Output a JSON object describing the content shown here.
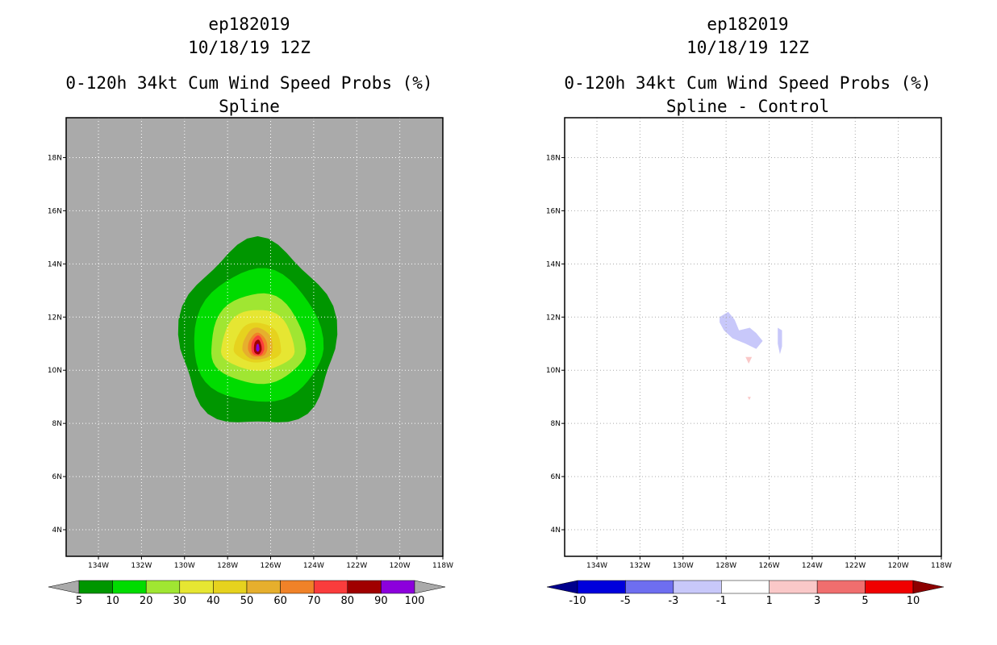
{
  "chart_data": [
    {
      "type": "filled_contour_map",
      "storm_id": "ep182019",
      "datetime": "10/18/19 12Z",
      "title": "0-120h 34kt Cum Wind Speed Probs (%)",
      "subtitle": "Spline",
      "lon_ticks": [
        "134W",
        "132W",
        "130W",
        "128W",
        "126W",
        "124W",
        "122W",
        "120W",
        "118W"
      ],
      "lat_ticks": [
        "18N",
        "16N",
        "14N",
        "12N",
        "10N",
        "8N",
        "6N",
        "4N"
      ],
      "lon_range": [
        -135.5,
        -118
      ],
      "lat_range": [
        3,
        19.5
      ],
      "background_color": "#aaaaaa",
      "contour_levels": [
        "5",
        "10",
        "20",
        "30",
        "40",
        "50",
        "60",
        "70",
        "80",
        "90",
        "100"
      ],
      "colors": [
        "#009600",
        "#00dc00",
        "#a0e632",
        "#e6e632",
        "#e6d21e",
        "#e6af2d",
        "#f08228",
        "#fa3c3c",
        "#a00000",
        "#8c00dc"
      ],
      "below_color": "#aaaaaa",
      "above_color": "#aaaaaa",
      "center": {
        "lon": -126.6,
        "lat": 10.8
      },
      "contours": [
        {
          "level": 5,
          "rx": 3.6,
          "ry_n": 4.0,
          "ry_s": 2.9
        },
        {
          "level": 10,
          "rx": 3.0,
          "ry_n": 3.0,
          "ry_s": 2.0
        },
        {
          "level": 20,
          "rx": 2.2,
          "ry_n": 2.1,
          "ry_s": 1.3
        },
        {
          "level": 30,
          "rx": 1.7,
          "ry_n": 1.5,
          "ry_s": 0.8
        },
        {
          "level": 40,
          "rx": 1.1,
          "ry_n": 1.0,
          "ry_s": 0.5
        },
        {
          "level": 50,
          "rx": 0.7,
          "ry_n": 0.8,
          "ry_s": 0.4
        },
        {
          "level": 60,
          "rx": 0.45,
          "ry_n": 0.6,
          "ry_s": 0.3
        },
        {
          "level": 70,
          "rx": 0.3,
          "ry_n": 0.5,
          "ry_s": 0.25
        },
        {
          "level": 80,
          "rx": 0.18,
          "ry_n": 0.35,
          "ry_s": 0.2
        },
        {
          "level": 90,
          "rx": 0.08,
          "ry_n": 0.2,
          "ry_s": 0.1
        }
      ]
    },
    {
      "type": "filled_contour_map",
      "storm_id": "ep182019",
      "datetime": "10/18/19 12Z",
      "title": "0-120h 34kt Cum Wind Speed Probs (%)",
      "subtitle": "Spline - Control",
      "lon_ticks": [
        "134W",
        "132W",
        "130W",
        "128W",
        "126W",
        "124W",
        "122W",
        "120W",
        "118W"
      ],
      "lat_ticks": [
        "18N",
        "16N",
        "14N",
        "12N",
        "10N",
        "8N",
        "6N",
        "4N"
      ],
      "lon_range": [
        -135.5,
        -118
      ],
      "lat_range": [
        3,
        19.5
      ],
      "background_color": "#ffffff",
      "contour_levels": [
        "-10",
        "-5",
        "-3",
        "-1",
        "1",
        "3",
        "5",
        "10"
      ],
      "colors": [
        "#0000dc",
        "#6e6ef0",
        "#c8c8fa",
        "#ffffff",
        "#fac8c8",
        "#f06e6e",
        "#f00000"
      ],
      "below_color": "#00008c",
      "above_color": "#8c0000",
      "features": [
        {
          "sign": "negative",
          "level": "-3 to -1",
          "points": [
            [
              -128.3,
              12.0
            ],
            [
              -127.9,
              12.2
            ],
            [
              -127.6,
              11.9
            ],
            [
              -127.4,
              11.5
            ],
            [
              -126.9,
              11.6
            ],
            [
              -126.6,
              11.4
            ],
            [
              -126.3,
              11.1
            ],
            [
              -126.6,
              10.8
            ],
            [
              -127.1,
              11.0
            ],
            [
              -127.7,
              11.2
            ],
            [
              -128.1,
              11.5
            ],
            [
              -128.3,
              11.8
            ]
          ]
        },
        {
          "sign": "negative",
          "level": "-3 to -1",
          "points": [
            [
              -125.6,
              11.6
            ],
            [
              -125.4,
              11.5
            ],
            [
              -125.4,
              10.9
            ],
            [
              -125.5,
              10.6
            ],
            [
              -125.6,
              11.0
            ]
          ]
        },
        {
          "sign": "positive",
          "level": "1 to 3",
          "points": [
            [
              -127.1,
              10.5
            ],
            [
              -126.8,
              10.5
            ],
            [
              -126.95,
              10.25
            ]
          ]
        },
        {
          "sign": "positive",
          "level": "1 to 3",
          "points": [
            [
              -127.0,
              9.0
            ],
            [
              -126.85,
              9.0
            ],
            [
              -126.92,
              8.88
            ]
          ]
        }
      ]
    }
  ]
}
